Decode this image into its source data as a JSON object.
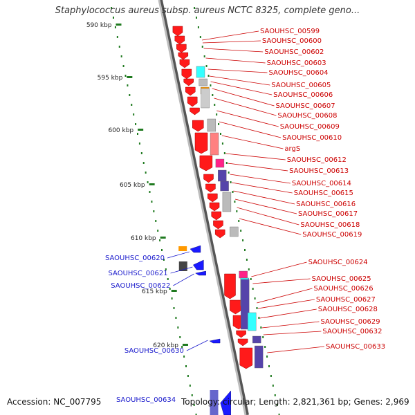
{
  "title": "Staphylococcus aureus subsp. aureus NCTC 8325, complete geno...",
  "footer": {
    "accession": "Accession: NC_007795",
    "meta": "Topology: circular; Length: 2,821,361 bp; Genes: 2,969",
    "partial_gene": "SAOUHSC_00634"
  },
  "scale_labels": [
    "590 kbp",
    "595 kbp",
    "600 kbp",
    "605 kbp",
    "610 kbp",
    "615 kbp",
    "620 kbp"
  ],
  "right_genes": [
    "SAOUHSC_00599",
    "SAOUHSC_00600",
    "SAOUHSC_00602",
    "SAOUHSC_00603",
    "SAOUHSC_00604",
    "SAOUHSC_00605",
    "SAOUHSC_00606",
    "SAOUHSC_00607",
    "SAOUHSC_00608",
    "SAOUHSC_00609",
    "SAOUHSC_00610",
    "argS",
    "SAOUHSC_00612",
    "SAOUHSC_00613",
    "SAOUHSC_00614",
    "SAOUHSC_00615",
    "SAOUHSC_00616",
    "SAOUHSC_00617",
    "SAOUHSC_00618",
    "SAOUHSC_00619",
    "SAOUHSC_00624",
    "SAOUHSC_00625",
    "SAOUHSC_00626",
    "SAOUHSC_00627",
    "SAOUHSC_00628",
    "SAOUHSC_00629",
    "SAOUHSC_00632",
    "SAOUHSC_00633"
  ],
  "left_genes": [
    "SAOUHSC_00620",
    "SAOUHSC_00621",
    "SAOUHSC_00622",
    "SAOUHSC_00630"
  ],
  "colors": {
    "forward": "#ff1a1a",
    "reverse": "#1a1aff",
    "right_label": "#cc0000",
    "left_label": "#1a1acc",
    "scale": "#1f7a1f",
    "backbone": "#8c8c8c"
  }
}
